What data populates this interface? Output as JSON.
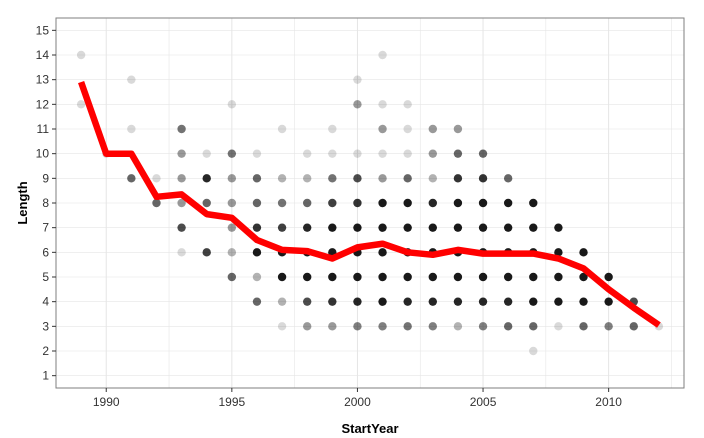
{
  "chart_data": {
    "type": "scatter",
    "title": "",
    "xlabel": "StartYear",
    "ylabel": "Length",
    "xlim": [
      1988,
      2013
    ],
    "ylim": [
      0.5,
      15.5
    ],
    "x_ticks": [
      1990,
      1995,
      2000,
      2005,
      2010
    ],
    "y_ticks": [
      1,
      2,
      3,
      4,
      5,
      6,
      7,
      8,
      9,
      10,
      11,
      12,
      13,
      14,
      15
    ],
    "grid": true,
    "legend": "none",
    "colors": {
      "line": "#ff0000",
      "point": "#000000",
      "grid": "#e5e5e5",
      "panel_border": "#7f7f7f"
    },
    "points": [
      {
        "x": 1989,
        "y": 14,
        "a": 0.15
      },
      {
        "x": 1989,
        "y": 12,
        "a": 0.15
      },
      {
        "x": 1990,
        "y": 10,
        "a": 0.15
      },
      {
        "x": 1991,
        "y": 13,
        "a": 0.15
      },
      {
        "x": 1991,
        "y": 11,
        "a": 0.15
      },
      {
        "x": 1991,
        "y": 9,
        "a": 0.6
      },
      {
        "x": 1992,
        "y": 9,
        "a": 0.15
      },
      {
        "x": 1992,
        "y": 8,
        "a": 0.6
      },
      {
        "x": 1993,
        "y": 11,
        "a": 0.55
      },
      {
        "x": 1993,
        "y": 10,
        "a": 0.4
      },
      {
        "x": 1993,
        "y": 9,
        "a": 0.4
      },
      {
        "x": 1993,
        "y": 8,
        "a": 0.4
      },
      {
        "x": 1993,
        "y": 7,
        "a": 0.7
      },
      {
        "x": 1993,
        "y": 6,
        "a": 0.15
      },
      {
        "x": 1994,
        "y": 10,
        "a": 0.15
      },
      {
        "x": 1994,
        "y": 9,
        "a": 0.85
      },
      {
        "x": 1994,
        "y": 8,
        "a": 0.6
      },
      {
        "x": 1994,
        "y": 6,
        "a": 0.75
      },
      {
        "x": 1995,
        "y": 12,
        "a": 0.15
      },
      {
        "x": 1995,
        "y": 10,
        "a": 0.55
      },
      {
        "x": 1995,
        "y": 9,
        "a": 0.4
      },
      {
        "x": 1995,
        "y": 8,
        "a": 0.4
      },
      {
        "x": 1995,
        "y": 7,
        "a": 0.4
      },
      {
        "x": 1995,
        "y": 6,
        "a": 0.3
      },
      {
        "x": 1995,
        "y": 5,
        "a": 0.6
      },
      {
        "x": 1996,
        "y": 10,
        "a": 0.15
      },
      {
        "x": 1996,
        "y": 9,
        "a": 0.6
      },
      {
        "x": 1996,
        "y": 8,
        "a": 0.6
      },
      {
        "x": 1996,
        "y": 7,
        "a": 0.8
      },
      {
        "x": 1996,
        "y": 6,
        "a": 0.9
      },
      {
        "x": 1996,
        "y": 5,
        "a": 0.3
      },
      {
        "x": 1996,
        "y": 4,
        "a": 0.6
      },
      {
        "x": 1997,
        "y": 11,
        "a": 0.15
      },
      {
        "x": 1997,
        "y": 9,
        "a": 0.3
      },
      {
        "x": 1997,
        "y": 8,
        "a": 0.55
      },
      {
        "x": 1997,
        "y": 7,
        "a": 0.75
      },
      {
        "x": 1997,
        "y": 6,
        "a": 0.9
      },
      {
        "x": 1997,
        "y": 5,
        "a": 0.9
      },
      {
        "x": 1997,
        "y": 4,
        "a": 0.3
      },
      {
        "x": 1997,
        "y": 3,
        "a": 0.15
      },
      {
        "x": 1998,
        "y": 10,
        "a": 0.15
      },
      {
        "x": 1998,
        "y": 9,
        "a": 0.3
      },
      {
        "x": 1998,
        "y": 8,
        "a": 0.6
      },
      {
        "x": 1998,
        "y": 7,
        "a": 0.85
      },
      {
        "x": 1998,
        "y": 6,
        "a": 0.9
      },
      {
        "x": 1998,
        "y": 5,
        "a": 0.9
      },
      {
        "x": 1998,
        "y": 4,
        "a": 0.7
      },
      {
        "x": 1998,
        "y": 3,
        "a": 0.4
      },
      {
        "x": 1999,
        "y": 11,
        "a": 0.15
      },
      {
        "x": 1999,
        "y": 10,
        "a": 0.15
      },
      {
        "x": 1999,
        "y": 9,
        "a": 0.55
      },
      {
        "x": 1999,
        "y": 8,
        "a": 0.75
      },
      {
        "x": 1999,
        "y": 7,
        "a": 0.9
      },
      {
        "x": 1999,
        "y": 6,
        "a": 0.9
      },
      {
        "x": 1999,
        "y": 5,
        "a": 0.9
      },
      {
        "x": 1999,
        "y": 4,
        "a": 0.8
      },
      {
        "x": 1999,
        "y": 3,
        "a": 0.4
      },
      {
        "x": 2000,
        "y": 13,
        "a": 0.15
      },
      {
        "x": 2000,
        "y": 12,
        "a": 0.4
      },
      {
        "x": 2000,
        "y": 10,
        "a": 0.15
      },
      {
        "x": 2000,
        "y": 9,
        "a": 0.7
      },
      {
        "x": 2000,
        "y": 8,
        "a": 0.8
      },
      {
        "x": 2000,
        "y": 7,
        "a": 0.9
      },
      {
        "x": 2000,
        "y": 6,
        "a": 0.9
      },
      {
        "x": 2000,
        "y": 5,
        "a": 0.9
      },
      {
        "x": 2000,
        "y": 4,
        "a": 0.85
      },
      {
        "x": 2000,
        "y": 3,
        "a": 0.5
      },
      {
        "x": 2001,
        "y": 14,
        "a": 0.15
      },
      {
        "x": 2001,
        "y": 12,
        "a": 0.15
      },
      {
        "x": 2001,
        "y": 11,
        "a": 0.4
      },
      {
        "x": 2001,
        "y": 10,
        "a": 0.15
      },
      {
        "x": 2001,
        "y": 9,
        "a": 0.4
      },
      {
        "x": 2001,
        "y": 8,
        "a": 0.9
      },
      {
        "x": 2001,
        "y": 7,
        "a": 0.9
      },
      {
        "x": 2001,
        "y": 6,
        "a": 0.9
      },
      {
        "x": 2001,
        "y": 5,
        "a": 0.9
      },
      {
        "x": 2001,
        "y": 4,
        "a": 0.9
      },
      {
        "x": 2001,
        "y": 3,
        "a": 0.5
      },
      {
        "x": 2002,
        "y": 12,
        "a": 0.15
      },
      {
        "x": 2002,
        "y": 11,
        "a": 0.15
      },
      {
        "x": 2002,
        "y": 10,
        "a": 0.15
      },
      {
        "x": 2002,
        "y": 9,
        "a": 0.6
      },
      {
        "x": 2002,
        "y": 8,
        "a": 0.9
      },
      {
        "x": 2002,
        "y": 7,
        "a": 0.9
      },
      {
        "x": 2002,
        "y": 6,
        "a": 0.9
      },
      {
        "x": 2002,
        "y": 5,
        "a": 0.9
      },
      {
        "x": 2002,
        "y": 4,
        "a": 0.85
      },
      {
        "x": 2002,
        "y": 3,
        "a": 0.55
      },
      {
        "x": 2003,
        "y": 11,
        "a": 0.4
      },
      {
        "x": 2003,
        "y": 10,
        "a": 0.4
      },
      {
        "x": 2003,
        "y": 9,
        "a": 0.3
      },
      {
        "x": 2003,
        "y": 8,
        "a": 0.85
      },
      {
        "x": 2003,
        "y": 7,
        "a": 0.9
      },
      {
        "x": 2003,
        "y": 6,
        "a": 0.9
      },
      {
        "x": 2003,
        "y": 5,
        "a": 0.9
      },
      {
        "x": 2003,
        "y": 4,
        "a": 0.85
      },
      {
        "x": 2003,
        "y": 3,
        "a": 0.5
      },
      {
        "x": 2004,
        "y": 11,
        "a": 0.4
      },
      {
        "x": 2004,
        "y": 10,
        "a": 0.6
      },
      {
        "x": 2004,
        "y": 9,
        "a": 0.8
      },
      {
        "x": 2004,
        "y": 8,
        "a": 0.9
      },
      {
        "x": 2004,
        "y": 7,
        "a": 0.9
      },
      {
        "x": 2004,
        "y": 6,
        "a": 0.9
      },
      {
        "x": 2004,
        "y": 5,
        "a": 0.9
      },
      {
        "x": 2004,
        "y": 4,
        "a": 0.85
      },
      {
        "x": 2004,
        "y": 3,
        "a": 0.3
      },
      {
        "x": 2005,
        "y": 10,
        "a": 0.6
      },
      {
        "x": 2005,
        "y": 9,
        "a": 0.8
      },
      {
        "x": 2005,
        "y": 8,
        "a": 0.9
      },
      {
        "x": 2005,
        "y": 7,
        "a": 0.9
      },
      {
        "x": 2005,
        "y": 6,
        "a": 0.9
      },
      {
        "x": 2005,
        "y": 5,
        "a": 0.9
      },
      {
        "x": 2005,
        "y": 4,
        "a": 0.85
      },
      {
        "x": 2005,
        "y": 3,
        "a": 0.5
      },
      {
        "x": 2006,
        "y": 9,
        "a": 0.6
      },
      {
        "x": 2006,
        "y": 8,
        "a": 0.9
      },
      {
        "x": 2006,
        "y": 7,
        "a": 0.9
      },
      {
        "x": 2006,
        "y": 6,
        "a": 0.9
      },
      {
        "x": 2006,
        "y": 5,
        "a": 0.9
      },
      {
        "x": 2006,
        "y": 4,
        "a": 0.85
      },
      {
        "x": 2006,
        "y": 3,
        "a": 0.6
      },
      {
        "x": 2007,
        "y": 8,
        "a": 0.9
      },
      {
        "x": 2007,
        "y": 7,
        "a": 0.9
      },
      {
        "x": 2007,
        "y": 6,
        "a": 0.9
      },
      {
        "x": 2007,
        "y": 5,
        "a": 0.9
      },
      {
        "x": 2007,
        "y": 4,
        "a": 0.9
      },
      {
        "x": 2007,
        "y": 3,
        "a": 0.6
      },
      {
        "x": 2007,
        "y": 2,
        "a": 0.15
      },
      {
        "x": 2008,
        "y": 7,
        "a": 0.9
      },
      {
        "x": 2008,
        "y": 6,
        "a": 0.9
      },
      {
        "x": 2008,
        "y": 5,
        "a": 0.9
      },
      {
        "x": 2008,
        "y": 4,
        "a": 0.9
      },
      {
        "x": 2008,
        "y": 3,
        "a": 0.15
      },
      {
        "x": 2009,
        "y": 6,
        "a": 0.9
      },
      {
        "x": 2009,
        "y": 5,
        "a": 0.9
      },
      {
        "x": 2009,
        "y": 4,
        "a": 0.9
      },
      {
        "x": 2009,
        "y": 3,
        "a": 0.6
      },
      {
        "x": 2010,
        "y": 5,
        "a": 0.9
      },
      {
        "x": 2010,
        "y": 4,
        "a": 0.9
      },
      {
        "x": 2010,
        "y": 3,
        "a": 0.5
      },
      {
        "x": 2011,
        "y": 4,
        "a": 0.7
      },
      {
        "x": 2011,
        "y": 3,
        "a": 0.6
      },
      {
        "x": 2012,
        "y": 3,
        "a": 0.15
      }
    ],
    "series": [
      {
        "x": [
          1989,
          1990,
          1991,
          1992,
          1993,
          1994,
          1995,
          1996,
          1997,
          1998,
          1999,
          2000,
          2001,
          2002,
          2003,
          2004,
          2005,
          2006,
          2007,
          2008,
          2009,
          2010,
          2011,
          2012
        ],
        "values": [
          12.9,
          10.0,
          10.0,
          8.25,
          8.35,
          7.55,
          7.4,
          6.5,
          6.1,
          6.05,
          5.75,
          6.2,
          6.35,
          6.0,
          5.9,
          6.1,
          5.95,
          5.95,
          5.95,
          5.75,
          5.35,
          4.5,
          3.75,
          3.05
        ]
      }
    ]
  }
}
